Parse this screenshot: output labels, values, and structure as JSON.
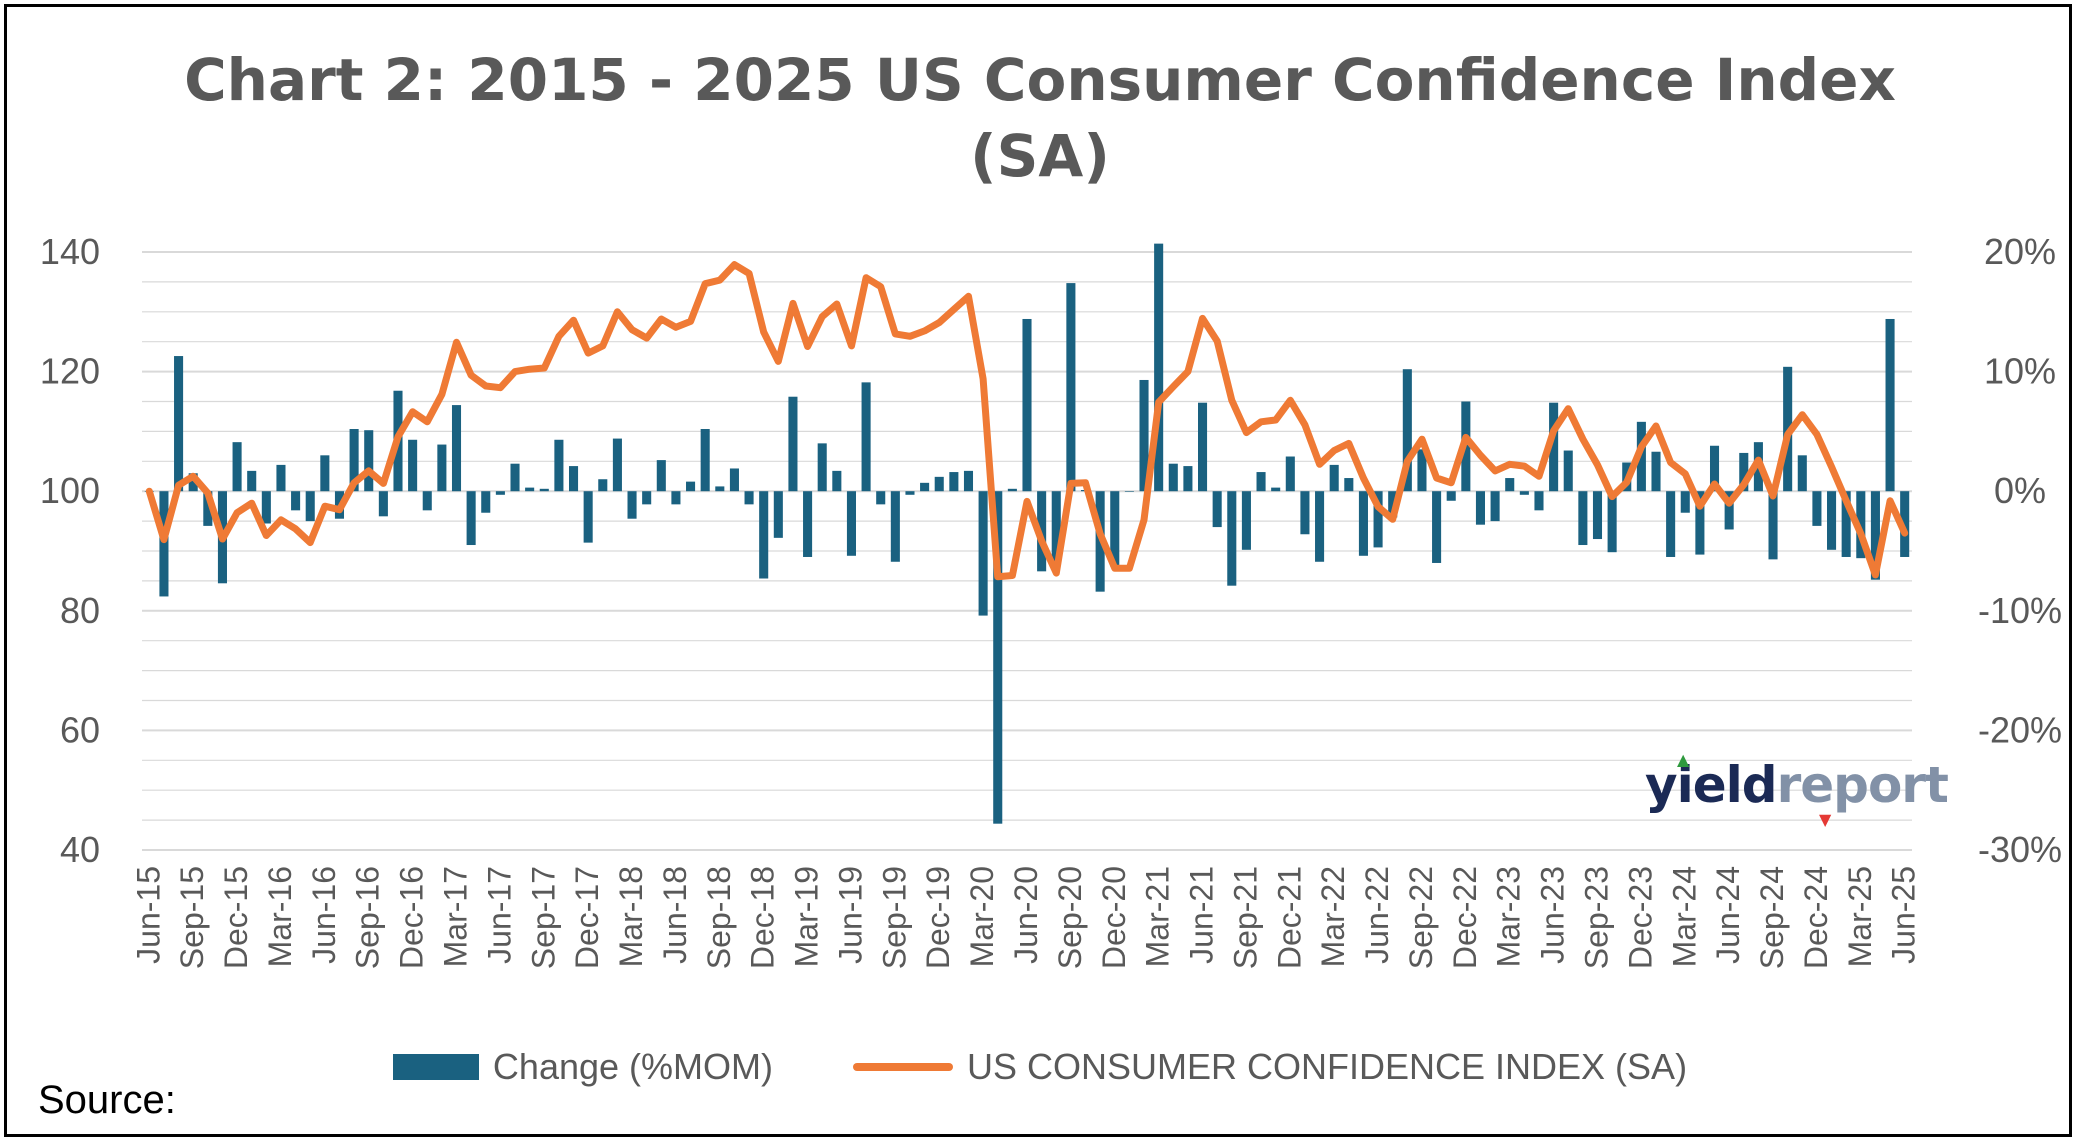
{
  "title_lines": [
    "Chart 2: 2015 - 2025 US Consumer Confidence Index",
    "(SA)"
  ],
  "source_label": "Source:",
  "logo": {
    "part1": "yield",
    "part2": "report",
    "colors": {
      "part1": "#1b2a55",
      "part2": "#8291a7"
    }
  },
  "legend": {
    "bar_label": "Change (%MOM)",
    "line_label": "US CONSUMER CONFIDENCE INDEX (SA)"
  },
  "colors": {
    "bar": "#1a6180",
    "line": "#ef7a35",
    "grid": "#d9d9d9",
    "text": "#595959"
  },
  "chart_data": {
    "type": "bar+line",
    "title": "Chart 2: 2015 - 2025 US Consumer Confidence Index (SA)",
    "left_axis": {
      "min": 40,
      "max": 140,
      "ticks": [
        40,
        60,
        80,
        100,
        120,
        140
      ]
    },
    "right_axis": {
      "min": -30,
      "max": 20,
      "ticks": [
        "-30%",
        "-20%",
        "-10%",
        "0%",
        "10%",
        "20%"
      ]
    },
    "x_tick_labels": [
      "Jun-15",
      "Sep-15",
      "Dec-15",
      "Mar-16",
      "Jun-16",
      "Sep-16",
      "Dec-16",
      "Mar-17",
      "Jun-17",
      "Sep-17",
      "Dec-17",
      "Mar-18",
      "Jun-18",
      "Sep-18",
      "Dec-18",
      "Mar-19",
      "Jun-19",
      "Sep-19",
      "Dec-19",
      "Mar-20",
      "Jun-20",
      "Sep-20",
      "Dec-20",
      "Mar-21",
      "Jun-21",
      "Sep-21",
      "Dec-21",
      "Mar-22",
      "Jun-22",
      "Sep-22",
      "Dec-22",
      "Mar-23",
      "Jun-23",
      "Sep-23",
      "Dec-23",
      "Mar-24",
      "Jun-24",
      "Sep-24",
      "Dec-24",
      "Mar-25",
      "Jun-25"
    ],
    "legend_position": "bottom",
    "grid": true,
    "series": [
      {
        "name": "US CONSUMER CONFIDENCE INDEX (SA)",
        "type": "line",
        "axis": "left",
        "values": [
          100.0,
          91.9,
          101.0,
          102.5,
          99.7,
          92.0,
          96.4,
          98.0,
          92.6,
          95.2,
          93.7,
          91.4,
          97.5,
          96.9,
          101.4,
          103.4,
          101.3,
          109.1,
          113.3,
          111.6,
          116.2,
          124.9,
          119.4,
          117.6,
          117.3,
          120.0,
          120.4,
          120.6,
          125.9,
          128.6,
          123.1,
          124.3,
          130.0,
          127.0,
          125.6,
          128.8,
          127.4,
          128.4,
          134.7,
          135.3,
          137.9,
          136.4,
          126.6,
          121.7,
          131.4,
          124.2,
          129.2,
          131.3,
          124.3,
          135.7,
          134.2,
          126.3,
          125.9,
          126.8,
          128.2,
          130.4,
          132.6,
          118.8,
          85.7,
          85.9,
          98.3,
          91.7,
          86.3,
          101.3,
          101.4,
          92.9,
          87.1,
          87.1,
          95.2,
          114.9,
          117.5,
          120.0,
          128.9,
          125.1,
          115.2,
          109.8,
          111.6,
          111.9,
          115.2,
          111.1,
          104.5,
          106.8,
          108.0,
          102.2,
          97.4,
          95.3,
          105.0,
          108.7,
          102.2,
          101.4,
          109.0,
          106.0,
          103.4,
          104.5,
          104.2,
          102.5,
          110.1,
          113.8,
          108.7,
          104.4,
          99.1,
          101.5,
          107.4,
          110.9,
          104.8,
          102.9,
          97.5,
          101.2,
          98.0,
          101.1,
          105.2,
          99.2,
          109.5,
          112.8,
          109.5,
          104.1,
          98.4,
          92.9,
          86.0,
          98.4,
          93.0
        ]
      },
      {
        "name": "Change (%MOM)",
        "type": "bar",
        "axis": "right",
        "values": [
          0,
          -8.8,
          11.3,
          1.5,
          -2.9,
          -7.7,
          4.1,
          1.7,
          -2.7,
          2.2,
          -1.6,
          -2.5,
          3.0,
          -2.3,
          5.2,
          5.1,
          -2.1,
          8.4,
          4.3,
          -1.6,
          3.9,
          7.2,
          -4.5,
          -1.8,
          -0.3,
          2.3,
          0.3,
          0.2,
          4.3,
          2.1,
          -4.3,
          1.0,
          4.4,
          -2.3,
          -1.1,
          2.6,
          -1.1,
          0.8,
          5.2,
          0.4,
          1.9,
          -1.1,
          -7.3,
          -3.9,
          7.9,
          -5.5,
          4.0,
          1.7,
          -5.4,
          9.1,
          -1.1,
          -5.9,
          -0.3,
          0.7,
          1.2,
          1.6,
          1.7,
          -10.4,
          -27.8,
          0.2,
          14.4,
          -6.7,
          -5.9,
          17.4,
          0.1,
          -8.4,
          -6.3,
          0.0,
          9.3,
          20.7,
          2.3,
          2.1,
          7.4,
          -3.0,
          -7.9,
          -4.9,
          1.6,
          0.3,
          2.9,
          -3.6,
          -5.9,
          2.2,
          1.1,
          -5.4,
          -4.7,
          -2.2,
          10.2,
          3.5,
          -6.0,
          -0.8,
          7.5,
          -2.8,
          -2.5,
          1.1,
          -0.3,
          -1.6,
          7.4,
          3.4,
          -4.5,
          -4.0,
          -5.1,
          2.4,
          5.8,
          3.3,
          -5.5,
          -1.8,
          -5.3,
          3.8,
          -3.2,
          3.2,
          4.1,
          -5.7,
          10.4,
          3.0,
          -2.9,
          -4.9,
          -5.5,
          -5.6,
          -7.4,
          14.4,
          -5.5
        ]
      }
    ]
  }
}
